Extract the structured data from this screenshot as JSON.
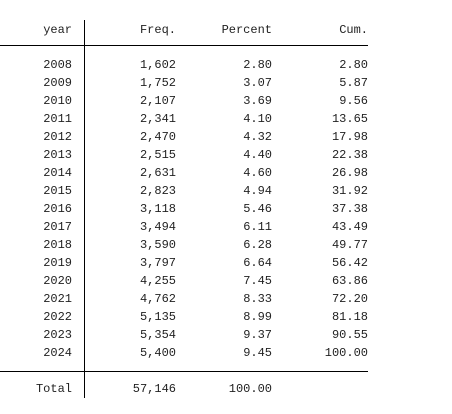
{
  "table": {
    "header": [
      "year",
      "Freq.",
      "Percent",
      "Cum."
    ],
    "rows": [
      [
        "2008",
        "1,602",
        "2.80",
        "2.80"
      ],
      [
        "2009",
        "1,752",
        "3.07",
        "5.87"
      ],
      [
        "2010",
        "2,107",
        "3.69",
        "9.56"
      ],
      [
        "2011",
        "2,341",
        "4.10",
        "13.65"
      ],
      [
        "2012",
        "2,470",
        "4.32",
        "17.98"
      ],
      [
        "2013",
        "2,515",
        "4.40",
        "22.38"
      ],
      [
        "2014",
        "2,631",
        "4.60",
        "26.98"
      ],
      [
        "2015",
        "2,823",
        "4.94",
        "31.92"
      ],
      [
        "2016",
        "3,118",
        "5.46",
        "37.38"
      ],
      [
        "2017",
        "3,494",
        "6.11",
        "43.49"
      ],
      [
        "2018",
        "3,590",
        "6.28",
        "49.77"
      ],
      [
        "2019",
        "3,797",
        "6.64",
        "56.42"
      ],
      [
        "2020",
        "4,255",
        "7.45",
        "63.86"
      ],
      [
        "2021",
        "4,762",
        "8.33",
        "72.20"
      ],
      [
        "2022",
        "5,135",
        "8.99",
        "81.18"
      ],
      [
        "2023",
        "5,354",
        "9.37",
        "90.55"
      ],
      [
        "2024",
        "5,400",
        "9.45",
        "100.00"
      ]
    ],
    "total": [
      "Total",
      "57,146",
      "100.00"
    ]
  }
}
